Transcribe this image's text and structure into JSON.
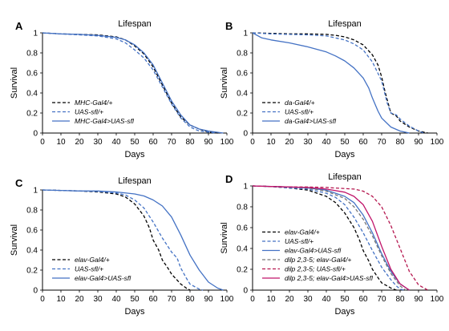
{
  "chart_data": [
    {
      "panel_label": "A",
      "type": "line",
      "title": "Lifespan",
      "xlabel": "Days",
      "ylabel": "Survival",
      "xlim": [
        0,
        100
      ],
      "ylim": [
        0,
        1
      ],
      "xticks": [
        0,
        10,
        20,
        30,
        40,
        50,
        60,
        70,
        80,
        90,
        100
      ],
      "yticks": [
        0,
        0.2,
        0.4,
        0.6,
        0.8,
        1
      ],
      "legend_position": "bottom-left",
      "grid": false,
      "series": [
        {
          "name": "MHC-Gal4/+",
          "color": "#000000",
          "style": "dashed",
          "x": [
            0,
            10,
            20,
            30,
            40,
            45,
            50,
            55,
            60,
            65,
            70,
            75,
            80,
            85,
            90,
            95
          ],
          "y": [
            1,
            0.99,
            0.985,
            0.98,
            0.96,
            0.93,
            0.87,
            0.79,
            0.66,
            0.48,
            0.3,
            0.16,
            0.08,
            0.04,
            0.01,
            0
          ]
        },
        {
          "name": "UAS-sfl/+",
          "color": "#4472C4",
          "style": "dashed",
          "x": [
            0,
            10,
            20,
            30,
            40,
            45,
            50,
            55,
            60,
            65,
            70,
            75,
            80,
            85,
            90,
            94
          ],
          "y": [
            1,
            0.99,
            0.98,
            0.97,
            0.94,
            0.9,
            0.83,
            0.75,
            0.63,
            0.46,
            0.29,
            0.15,
            0.06,
            0.02,
            0.01,
            0
          ]
        },
        {
          "name": "MHC-Gal4>UAS-sfl",
          "color": "#4472C4",
          "style": "solid",
          "x": [
            0,
            10,
            20,
            30,
            40,
            45,
            50,
            55,
            60,
            65,
            70,
            75,
            80,
            85,
            90,
            98
          ],
          "y": [
            1,
            0.99,
            0.985,
            0.975,
            0.955,
            0.93,
            0.88,
            0.8,
            0.68,
            0.5,
            0.32,
            0.18,
            0.08,
            0.04,
            0.02,
            0
          ]
        }
      ]
    },
    {
      "panel_label": "B",
      "type": "line",
      "title": "Lifespan",
      "xlabel": "Days",
      "ylabel": "Survival",
      "xlim": [
        0,
        100
      ],
      "ylim": [
        0,
        1
      ],
      "xticks": [
        0,
        10,
        20,
        30,
        40,
        50,
        60,
        70,
        80,
        90,
        100
      ],
      "yticks": [
        0,
        0.2,
        0.4,
        0.6,
        0.8,
        1
      ],
      "legend_position": "bottom-left",
      "grid": false,
      "series": [
        {
          "name": "da-Gal4/+",
          "color": "#000000",
          "style": "dashed",
          "x": [
            0,
            10,
            20,
            30,
            40,
            45,
            50,
            55,
            60,
            65,
            68,
            70,
            72,
            75,
            78,
            80,
            85,
            90,
            95
          ],
          "y": [
            1,
            0.995,
            0.99,
            0.99,
            0.985,
            0.975,
            0.96,
            0.93,
            0.88,
            0.78,
            0.68,
            0.56,
            0.4,
            0.2,
            0.17,
            0.12,
            0.06,
            0.02,
            0
          ]
        },
        {
          "name": "UAS-sfl/+",
          "color": "#4472C4",
          "style": "dashed",
          "x": [
            0,
            10,
            20,
            30,
            40,
            45,
            50,
            55,
            60,
            65,
            70,
            73,
            75,
            78,
            80,
            85,
            90,
            93
          ],
          "y": [
            1,
            0.99,
            0.985,
            0.98,
            0.97,
            0.95,
            0.93,
            0.89,
            0.83,
            0.71,
            0.52,
            0.3,
            0.2,
            0.18,
            0.14,
            0.07,
            0.02,
            0
          ]
        },
        {
          "name": "da-Gal4>UAS-sfl",
          "color": "#4472C4",
          "style": "solid",
          "x": [
            0,
            5,
            10,
            20,
            30,
            40,
            45,
            50,
            55,
            60,
            63,
            65,
            68,
            70,
            75,
            80,
            85
          ],
          "y": [
            1,
            0.95,
            0.93,
            0.9,
            0.86,
            0.81,
            0.77,
            0.72,
            0.65,
            0.55,
            0.45,
            0.35,
            0.22,
            0.15,
            0.06,
            0.02,
            0
          ]
        }
      ]
    },
    {
      "panel_label": "C",
      "type": "line",
      "title": "Lifespan",
      "xlabel": "Days",
      "ylabel": "Survival",
      "xlim": [
        0,
        100
      ],
      "ylim": [
        0,
        1
      ],
      "xticks": [
        0,
        10,
        20,
        30,
        40,
        50,
        60,
        70,
        80,
        90,
        100
      ],
      "yticks": [
        0,
        0.2,
        0.4,
        0.6,
        0.8,
        1
      ],
      "legend_position": "bottom-left",
      "grid": false,
      "series": [
        {
          "name": "elav-Gal4/+",
          "color": "#000000",
          "style": "dashed",
          "x": [
            0,
            10,
            20,
            30,
            40,
            45,
            50,
            55,
            58,
            60,
            63,
            65,
            68,
            70,
            75,
            78,
            80
          ],
          "y": [
            1,
            0.995,
            0.99,
            0.98,
            0.96,
            0.93,
            0.86,
            0.74,
            0.62,
            0.5,
            0.4,
            0.3,
            0.22,
            0.16,
            0.06,
            0.02,
            0
          ]
        },
        {
          "name": "UAS-sfl/+",
          "color": "#4472C4",
          "style": "dashed",
          "x": [
            0,
            10,
            20,
            30,
            40,
            45,
            50,
            55,
            60,
            65,
            70,
            73,
            75,
            78,
            80,
            85,
            87
          ],
          "y": [
            1,
            0.995,
            0.99,
            0.985,
            0.97,
            0.95,
            0.9,
            0.82,
            0.68,
            0.52,
            0.38,
            0.32,
            0.22,
            0.12,
            0.06,
            0.01,
            0
          ]
        },
        {
          "name": "elav-Gal4>UAS-sfl",
          "color": "#4472C4",
          "style": "solid",
          "x": [
            0,
            10,
            20,
            30,
            40,
            50,
            55,
            60,
            65,
            70,
            75,
            80,
            85,
            90,
            95,
            98
          ],
          "y": [
            1,
            0.995,
            0.99,
            0.99,
            0.98,
            0.96,
            0.94,
            0.9,
            0.84,
            0.73,
            0.55,
            0.35,
            0.2,
            0.08,
            0.02,
            0
          ]
        }
      ]
    },
    {
      "panel_label": "D",
      "type": "line",
      "title": "Lifespan",
      "xlabel": "Days",
      "ylabel": "Survival",
      "xlim": [
        0,
        100
      ],
      "ylim": [
        0,
        1
      ],
      "xticks": [
        0,
        10,
        20,
        30,
        40,
        50,
        60,
        70,
        80,
        90,
        100
      ],
      "yticks": [
        0,
        0.2,
        0.4,
        0.6,
        0.8,
        1
      ],
      "legend_position": "bottom-left",
      "grid": false,
      "series": [
        {
          "name": "elav-Gal4/+",
          "color": "#000000",
          "style": "dashed",
          "x": [
            0,
            10,
            20,
            30,
            40,
            45,
            50,
            55,
            58,
            60,
            63,
            65,
            68,
            70,
            75,
            78
          ],
          "y": [
            1,
            0.995,
            0.98,
            0.96,
            0.9,
            0.84,
            0.74,
            0.6,
            0.48,
            0.38,
            0.28,
            0.2,
            0.12,
            0.07,
            0.02,
            0
          ]
        },
        {
          "name": "UAS-sfl/+",
          "color": "#4472C4",
          "style": "dashed",
          "x": [
            0,
            10,
            20,
            30,
            40,
            45,
            50,
            55,
            60,
            65,
            70,
            75,
            78,
            80,
            82
          ],
          "y": [
            1,
            0.995,
            0.98,
            0.97,
            0.93,
            0.89,
            0.82,
            0.7,
            0.55,
            0.38,
            0.22,
            0.1,
            0.04,
            0.01,
            0
          ]
        },
        {
          "name": "elav-Gal4>UAS-sfl",
          "color": "#4472C4",
          "style": "solid",
          "x": [
            0,
            10,
            20,
            30,
            40,
            50,
            55,
            60,
            65,
            70,
            75,
            80,
            85
          ],
          "y": [
            1,
            0.995,
            0.99,
            0.98,
            0.96,
            0.9,
            0.84,
            0.72,
            0.55,
            0.35,
            0.18,
            0.06,
            0
          ]
        },
        {
          "name": "dilp 2,3-5; elav-Gal4/+",
          "color": "#777777",
          "style": "dashed",
          "x": [
            0,
            10,
            20,
            30,
            40,
            50,
            55,
            60,
            65,
            70,
            75,
            80,
            83
          ],
          "y": [
            1,
            0.995,
            0.99,
            0.98,
            0.95,
            0.88,
            0.8,
            0.68,
            0.52,
            0.33,
            0.16,
            0.04,
            0
          ]
        },
        {
          "name": "dilp 2,3-5; UAS-sfl/+",
          "color": "#B5174F",
          "style": "dashed",
          "x": [
            0,
            10,
            20,
            30,
            40,
            50,
            55,
            60,
            65,
            70,
            75,
            80,
            85,
            90,
            95
          ],
          "y": [
            1,
            0.995,
            0.99,
            0.99,
            0.985,
            0.975,
            0.97,
            0.95,
            0.9,
            0.8,
            0.62,
            0.4,
            0.18,
            0.05,
            0
          ]
        },
        {
          "name": "dilp 2,3-5; elav-Gal4>UAS-sfl",
          "color": "#C0146A",
          "style": "solid",
          "x": [
            0,
            10,
            20,
            30,
            40,
            50,
            55,
            60,
            65,
            70,
            75,
            80,
            85
          ],
          "y": [
            1,
            0.995,
            0.99,
            0.985,
            0.97,
            0.94,
            0.9,
            0.82,
            0.66,
            0.42,
            0.2,
            0.06,
            0
          ]
        }
      ]
    }
  ]
}
